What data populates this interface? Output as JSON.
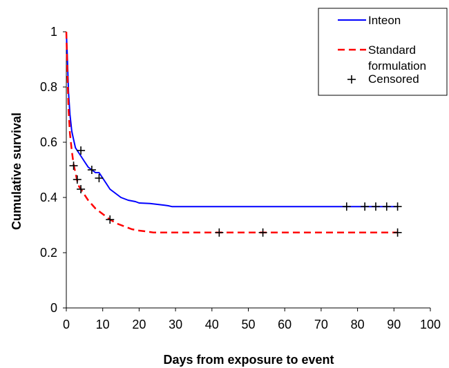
{
  "chart_data": {
    "type": "line",
    "title": "",
    "xlabel": "Days from exposure to event",
    "ylabel": "Cumulative survival",
    "xlim": [
      0,
      100
    ],
    "ylim": [
      0,
      1
    ],
    "xticks": [
      0,
      10,
      20,
      30,
      40,
      50,
      60,
      70,
      80,
      90,
      100
    ],
    "yticks": [
      0,
      0.2,
      0.4,
      0.6,
      0.8,
      1
    ],
    "ytick_labels": [
      "0",
      "0.2",
      "0.4",
      "0.6",
      "0.8",
      "1"
    ],
    "grid": false,
    "legend_position": "top-right",
    "legend": {
      "entries": [
        {
          "label": "Inteon",
          "style": "solid",
          "color": "#0000ff"
        },
        {
          "label_lines": [
            "Standard",
            "formulation"
          ],
          "style": "dashed",
          "color": "#ff0000"
        },
        {
          "label": "Censored",
          "style": "marker"
        }
      ]
    },
    "series": [
      {
        "name": "Inteon",
        "color": "#0000ff",
        "style": "solid",
        "x": [
          0,
          0.3,
          0.6,
          1.0,
          1.5,
          2.0,
          2.5,
          3.0,
          4.0,
          5.0,
          6.0,
          7.0,
          8.0,
          9.0,
          10.0,
          11.0,
          12.0,
          13.0,
          15.0,
          17.0,
          19.0,
          20.0,
          23.0,
          25.0,
          27.0,
          28.0,
          29.0,
          91.0
        ],
        "y": [
          1.0,
          0.9,
          0.78,
          0.7,
          0.64,
          0.61,
          0.58,
          0.57,
          0.55,
          0.53,
          0.51,
          0.5,
          0.49,
          0.49,
          0.47,
          0.45,
          0.43,
          0.42,
          0.4,
          0.39,
          0.385,
          0.38,
          0.378,
          0.375,
          0.372,
          0.37,
          0.367,
          0.367
        ]
      },
      {
        "name": "Standard formulation",
        "color": "#ff0000",
        "style": "dashed",
        "x": [
          0,
          0.3,
          0.6,
          1.0,
          1.5,
          2.0,
          2.5,
          3.0,
          3.5,
          4.0,
          5.0,
          6.0,
          7.0,
          8.0,
          9.0,
          10.0,
          11.0,
          12.0,
          14.0,
          16.0,
          18.0,
          20.0,
          22.0,
          24.0,
          91.0
        ],
        "y": [
          1.0,
          0.85,
          0.72,
          0.63,
          0.57,
          0.52,
          0.49,
          0.46,
          0.44,
          0.43,
          0.41,
          0.39,
          0.375,
          0.36,
          0.35,
          0.34,
          0.33,
          0.32,
          0.305,
          0.295,
          0.285,
          0.28,
          0.277,
          0.273,
          0.273
        ]
      }
    ],
    "censored": [
      {
        "series": "Inteon",
        "x": [
          4,
          7,
          9,
          77,
          82,
          85,
          88,
          91
        ],
        "y": [
          0.57,
          0.5,
          0.47,
          0.367,
          0.367,
          0.367,
          0.367,
          0.367
        ]
      },
      {
        "series": "Standard formulation",
        "x": [
          2,
          3,
          4,
          12,
          42,
          54,
          91
        ],
        "y": [
          0.515,
          0.465,
          0.43,
          0.32,
          0.273,
          0.273,
          0.273
        ]
      }
    ]
  }
}
